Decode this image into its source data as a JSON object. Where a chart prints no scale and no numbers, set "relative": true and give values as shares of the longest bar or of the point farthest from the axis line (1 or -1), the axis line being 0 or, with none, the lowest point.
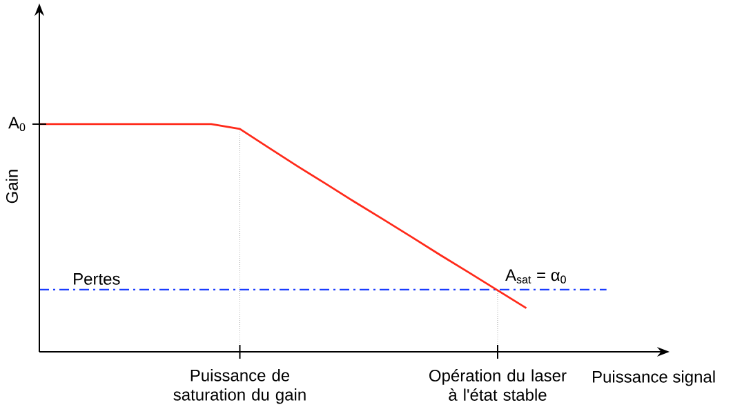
{
  "chart_data": {
    "type": "line",
    "relative": true,
    "ylabel": "Gain",
    "xlabel": "Puissance signal",
    "categories": [
      null,
      null,
      null,
      null,
      null,
      null,
      null,
      "Puissance de saturation du gain",
      null,
      null,
      null,
      null,
      null,
      null,
      null,
      null,
      "Opération du laser à l'état stable",
      null
    ],
    "values": [
      1,
      1,
      1,
      1,
      1,
      1,
      1,
      0.979,
      0.897,
      0.816,
      0.738,
      0.659,
      0.582,
      0.504,
      0.425,
      0.348,
      0.27,
      0.192
    ],
    "color": "#ff2a1a",
    "ref_lines": [
      {
        "axis": "y",
        "value": 0.273,
        "label": "Pertes",
        "color": "#1a3cff",
        "line_style": "dashed"
      }
    ],
    "annotations": [
      "A$_{0}$",
      {
        "text": "A$_{sat}$ = α$_{0}$",
        "x": "Opération du laser à l'état stable",
        "y": 0.273
      }
    ],
    "legend": false,
    "marker": "none",
    "line_style": "solid"
  }
}
